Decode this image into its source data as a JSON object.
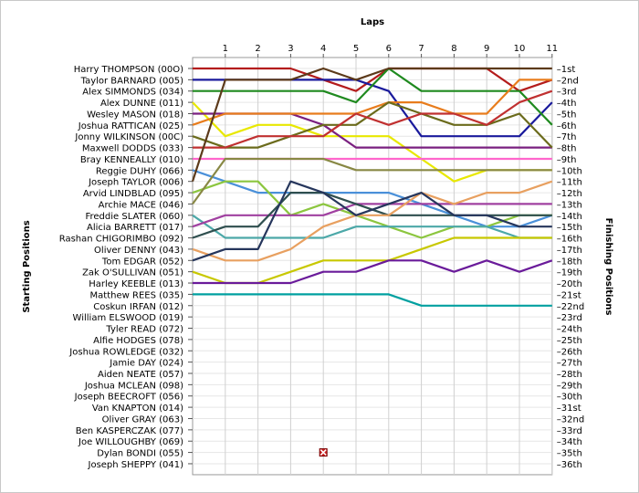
{
  "chart_data": {
    "type": "line",
    "title": "Laps",
    "ylabel_left": "Starting Positions",
    "ylabel_right": "Finishing Positions",
    "x_ticks": [
      "1",
      "2",
      "3",
      "4",
      "5",
      "6",
      "7",
      "8",
      "9",
      "10",
      "11"
    ],
    "finishing_labels": [
      "1st",
      "2nd",
      "3rd",
      "4th",
      "5th",
      "6th",
      "7th",
      "8th",
      "9th",
      "10th",
      "11th",
      "12th",
      "13th",
      "14th",
      "15th",
      "16th",
      "17th",
      "18th",
      "19th",
      "20th",
      "21st",
      "22nd",
      "23rd",
      "24th",
      "25th",
      "26th",
      "27th",
      "28th",
      "29th",
      "30th",
      "31st",
      "32nd",
      "33rd",
      "34th",
      "35th",
      "36th"
    ],
    "starting_labels": [
      "Harry THOMPSON (00O)",
      "Taylor BARNARD (005)",
      "Alex SIMMONDS (034)",
      "Alex DUNNE (011)",
      "Wesley MASON (018)",
      "Joshua RATTICAN (025)",
      "Jonny WILKINSON (00C)",
      "Maxwell  DODDS (033)",
      "Bray KENNEALLY (010)",
      "Reggie  DUHY (066)",
      "Joseph TAYLOR (006)",
      "Arvid LINDBLAD (095)",
      "Archie MACE (046)",
      "Freddie SLATER (060)",
      "Alicia BARRETT (017)",
      "Rashan CHIGORIMBO (092)",
      "Oliver DENNY (043)",
      "Tom EDGAR (052)",
      "Zak O'SULLIVAN (051)",
      "Harley KEEBLE (013)",
      "Matthew REES (035)",
      "Coskun  IRFAN (012)",
      "William ELSWOOD (019)",
      "Tyler READ (072)",
      "Alfie HODGES (078)",
      "Joshua ROWLEDGE (032)",
      "Jamie DAY (024)",
      "Aiden NEATE (057)",
      "Joshua MCLEAN (098)",
      "Joseph BEECROFT (056)",
      "Van KNAPTON (014)",
      "Oliver GRAY (063)",
      "Ben KASPERCZAK (077)",
      "Joe WILLOUGHBY (069)",
      "Dylan BONDI (055)",
      "Joseph SHEPPY (041)"
    ],
    "x_range": [
      0,
      11
    ],
    "y_range": [
      1,
      36
    ],
    "grid": true,
    "series": [
      {
        "color": "#b41c1c",
        "values": [
          1,
          1,
          1,
          1,
          2,
          3,
          1,
          1,
          1,
          1,
          3,
          2
        ],
        "finish": 2
      },
      {
        "color": "#1a1a9c",
        "values": [
          2,
          2,
          2,
          2,
          2,
          2,
          3,
          7,
          7,
          7,
          7,
          4
        ],
        "finish": 4
      },
      {
        "color": "#1f8a1f",
        "values": [
          3,
          3,
          3,
          3,
          3,
          4,
          1,
          3,
          3,
          3,
          3,
          6
        ],
        "finish": 6
      },
      {
        "color": "#e8e800",
        "values": [
          4,
          7,
          6,
          6,
          7,
          7,
          7,
          9,
          11,
          10,
          10,
          10
        ],
        "finish": 10
      },
      {
        "color": "#7a2080",
        "values": [
          5,
          5,
          5,
          5,
          6,
          8,
          8,
          8,
          8,
          8,
          8,
          8
        ],
        "finish": 8
      },
      {
        "color": "#e87c1c",
        "values": [
          6,
          5,
          5,
          5,
          5,
          5,
          4,
          4,
          5,
          5,
          2,
          2
        ],
        "finish": 2
      },
      {
        "color": "#6b6b1c",
        "values": [
          7,
          8,
          8,
          7,
          6,
          6,
          4,
          5,
          6,
          6,
          5,
          8
        ],
        "finish": 8
      },
      {
        "color": "#c03030",
        "values": [
          8,
          8,
          7,
          7,
          7,
          5,
          6,
          5,
          5,
          6,
          4,
          3
        ],
        "finish": 3
      },
      {
        "color": "#ff66cc",
        "values": [
          9,
          9,
          9,
          9,
          9,
          9,
          9,
          9,
          9,
          9,
          9,
          9
        ],
        "finish": 9
      },
      {
        "color": "#4a90d9",
        "values": [
          10,
          11,
          12,
          12,
          12,
          12,
          12,
          13,
          14,
          15,
          15,
          14
        ],
        "finish": 14
      },
      {
        "color": "#5c3a1a",
        "values": [
          11,
          2,
          2,
          2,
          1,
          2,
          1,
          1,
          1,
          1,
          1,
          1
        ],
        "finish": 1
      },
      {
        "color": "#8cc63f",
        "values": [
          12,
          11,
          11,
          14,
          13,
          14,
          15,
          16,
          15,
          15,
          14,
          14
        ],
        "finish": 14
      },
      {
        "color": "#888844",
        "values": [
          13,
          9,
          9,
          9,
          9,
          10,
          10,
          10,
          10,
          10,
          10,
          10
        ],
        "finish": 10
      },
      {
        "color": "#4ca8a8",
        "values": [
          14,
          16,
          16,
          16,
          16,
          15,
          15,
          15,
          15,
          15,
          16,
          16
        ],
        "finish": 16
      },
      {
        "color": "#a040a0",
        "values": [
          15,
          14,
          14,
          14,
          14,
          13,
          13,
          13,
          13,
          13,
          13,
          13
        ],
        "finish": 13
      },
      {
        "color": "#2f4f4f",
        "values": [
          16,
          15,
          15,
          12,
          12,
          13,
          14,
          14,
          14,
          14,
          14,
          14
        ],
        "finish": 14
      },
      {
        "color": "#e8a060",
        "values": [
          17,
          18,
          18,
          17,
          15,
          14,
          14,
          12,
          13,
          12,
          12,
          11
        ],
        "finish": 11
      },
      {
        "color": "#26365c",
        "values": [
          18,
          17,
          17,
          11,
          12,
          14,
          13,
          12,
          14,
          14,
          15,
          15
        ],
        "finish": 15
      },
      {
        "color": "#c8c800",
        "values": [
          19,
          20,
          20,
          19,
          18,
          18,
          18,
          17,
          16,
          16,
          16,
          16
        ],
        "finish": 16
      },
      {
        "color": "#6a1b9a",
        "values": [
          20,
          20,
          20,
          20,
          19,
          19,
          18,
          18,
          19,
          18,
          19,
          18
        ],
        "finish": 18
      },
      {
        "color": "#00a0a0",
        "values": [
          21,
          21,
          21,
          21,
          21,
          21,
          21,
          22,
          22,
          22,
          22,
          22
        ],
        "finish": 22
      }
    ],
    "retired": {
      "x": 4,
      "y": 35
    }
  }
}
